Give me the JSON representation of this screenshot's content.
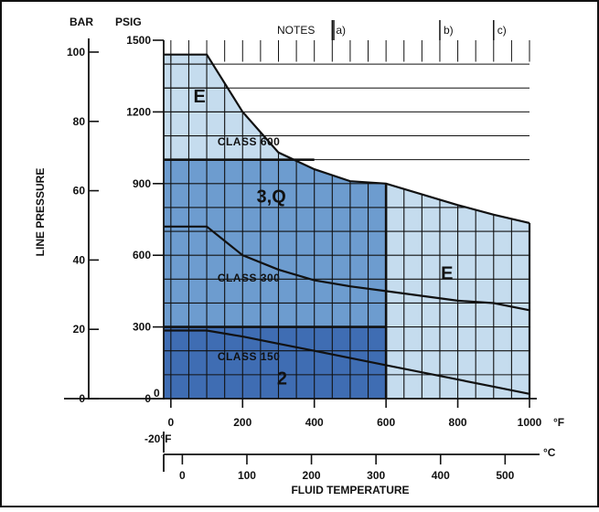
{
  "chart_data": {
    "type": "area",
    "title": "",
    "ylabel": "LINE PRESSURE",
    "xlabel": "FLUID TEMPERATURE",
    "y_primary_unit": "PSIG",
    "y_secondary_unit": "BAR",
    "x_primary_unit": "°F",
    "x_secondary_unit": "°C",
    "x_min_label": "-20°F",
    "xlim": [
      -20,
      1000
    ],
    "ylim": [
      0,
      1500
    ],
    "psig_ticks": [
      "0",
      "300",
      "600",
      "900",
      "1200",
      "1500"
    ],
    "psig_tick_values": [
      0,
      300,
      600,
      900,
      1200,
      1500
    ],
    "bar_ticks": [
      "0",
      "20",
      "40",
      "60",
      "80",
      "100"
    ],
    "bar_tick_values": [
      0,
      20,
      40,
      60,
      80,
      100
    ],
    "f_ticks": [
      "0",
      "200",
      "400",
      "600",
      "800",
      "1000"
    ],
    "f_tick_values": [
      0,
      200,
      400,
      600,
      800,
      1000
    ],
    "c_ticks": [
      "0",
      "100",
      "200",
      "300",
      "400",
      "500"
    ],
    "c_tick_values": [
      0,
      100,
      200,
      300,
      400,
      500
    ],
    "notes_label": "NOTES",
    "notes": [
      {
        "label": "a)",
        "x": 450
      },
      {
        "label": "b)",
        "x": 750
      },
      {
        "label": "c)",
        "x": 900
      }
    ],
    "grid": true,
    "colors": {
      "light": "#c5dcee",
      "medium": "#6d9ccf",
      "dark": "#3f6db3",
      "line": "#111111"
    },
    "curves": [
      {
        "name": "CLASS 600",
        "points": [
          [
            -20,
            1440
          ],
          [
            100,
            1440
          ],
          [
            200,
            1200
          ],
          [
            300,
            1030
          ],
          [
            400,
            960
          ],
          [
            500,
            910
          ],
          [
            600,
            900
          ],
          [
            800,
            810
          ],
          [
            900,
            770
          ],
          [
            1000,
            735
          ]
        ]
      },
      {
        "name": "CLASS 300",
        "points": [
          [
            -20,
            720
          ],
          [
            100,
            720
          ],
          [
            200,
            600
          ],
          [
            300,
            540
          ],
          [
            400,
            495
          ],
          [
            500,
            470
          ],
          [
            600,
            450
          ],
          [
            800,
            410
          ],
          [
            900,
            400
          ],
          [
            1000,
            370
          ]
        ]
      },
      {
        "name": "CLASS 150",
        "points": [
          [
            -20,
            285
          ],
          [
            100,
            285
          ],
          [
            200,
            260
          ],
          [
            300,
            230
          ],
          [
            400,
            200
          ],
          [
            500,
            170
          ],
          [
            600,
            140
          ],
          [
            800,
            80
          ],
          [
            900,
            50
          ],
          [
            1000,
            20
          ]
        ]
      }
    ],
    "regions": [
      {
        "label": "E",
        "color": "light",
        "note": "upper region to CLASS 600 curve"
      },
      {
        "label": "3,Q",
        "color": "medium",
        "x_range": [
          -20,
          600
        ],
        "y_max": 1000
      },
      {
        "label": "2",
        "color": "dark",
        "x_range": [
          -20,
          600
        ],
        "y_max": 300
      },
      {
        "label": "E",
        "color": "light",
        "x_range": [
          600,
          1000
        ]
      }
    ],
    "boundary_lines": [
      {
        "y": 1000,
        "x_range": [
          -20,
          400
        ]
      },
      {
        "y": 300,
        "x_range": [
          -20,
          600
        ]
      },
      {
        "x": 600,
        "y_range": [
          0,
          900
        ]
      }
    ],
    "zone_labels": [
      {
        "text": "E",
        "x": 80,
        "y": 1240
      },
      {
        "text": "3,Q",
        "x": 280,
        "y": 820
      },
      {
        "text": "2",
        "x": 310,
        "y": 60
      },
      {
        "text": "E",
        "x": 770,
        "y": 500
      }
    ],
    "class_labels": [
      {
        "text": "CLASS 600",
        "x": 130,
        "y": 1060
      },
      {
        "text": "CLASS 300",
        "x": 130,
        "y": 490
      },
      {
        "text": "CLASS 150",
        "x": 130,
        "y": 160
      }
    ]
  }
}
